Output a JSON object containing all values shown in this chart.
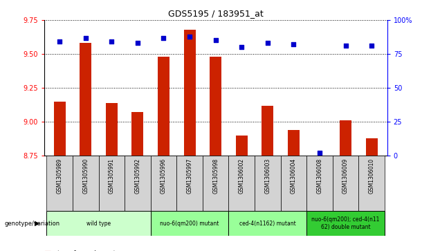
{
  "title": "GDS5195 / 183951_at",
  "samples": [
    "GSM1305989",
    "GSM1305990",
    "GSM1305991",
    "GSM1305992",
    "GSM1305996",
    "GSM1305997",
    "GSM1305998",
    "GSM1306002",
    "GSM1306003",
    "GSM1306004",
    "GSM1306008",
    "GSM1306009",
    "GSM1306010"
  ],
  "transformed_count": [
    9.15,
    9.58,
    9.14,
    9.07,
    9.48,
    9.68,
    9.48,
    8.9,
    9.12,
    8.94,
    8.75,
    9.01,
    8.88
  ],
  "percentile_rank": [
    84,
    87,
    84,
    83,
    87,
    88,
    85,
    80,
    83,
    82,
    2,
    81,
    81
  ],
  "ylim_left": [
    8.75,
    9.75
  ],
  "ylim_right": [
    0,
    100
  ],
  "yticks_left": [
    8.75,
    9.0,
    9.25,
    9.5,
    9.75
  ],
  "yticks_right": [
    0,
    25,
    50,
    75,
    100
  ],
  "ytick_right_labels": [
    "0",
    "25",
    "50",
    "75",
    "100%"
  ],
  "groups": [
    {
      "label": "wild type",
      "start": 0,
      "end": 3,
      "color": "#ccffcc"
    },
    {
      "label": "nuo-6(qm200) mutant",
      "start": 4,
      "end": 6,
      "color": "#99ff99"
    },
    {
      "label": "ced-4(n1162) mutant",
      "start": 7,
      "end": 9,
      "color": "#99ff99"
    },
    {
      "label": "nuo-6(qm200); ced-4(n11\n62) double mutant",
      "start": 10,
      "end": 12,
      "color": "#33cc33"
    }
  ],
  "bar_color": "#cc2200",
  "dot_color": "#0000cc",
  "bar_bottom": 8.75,
  "bg_color": "#d3d3d3",
  "plot_bg": "#ffffff"
}
